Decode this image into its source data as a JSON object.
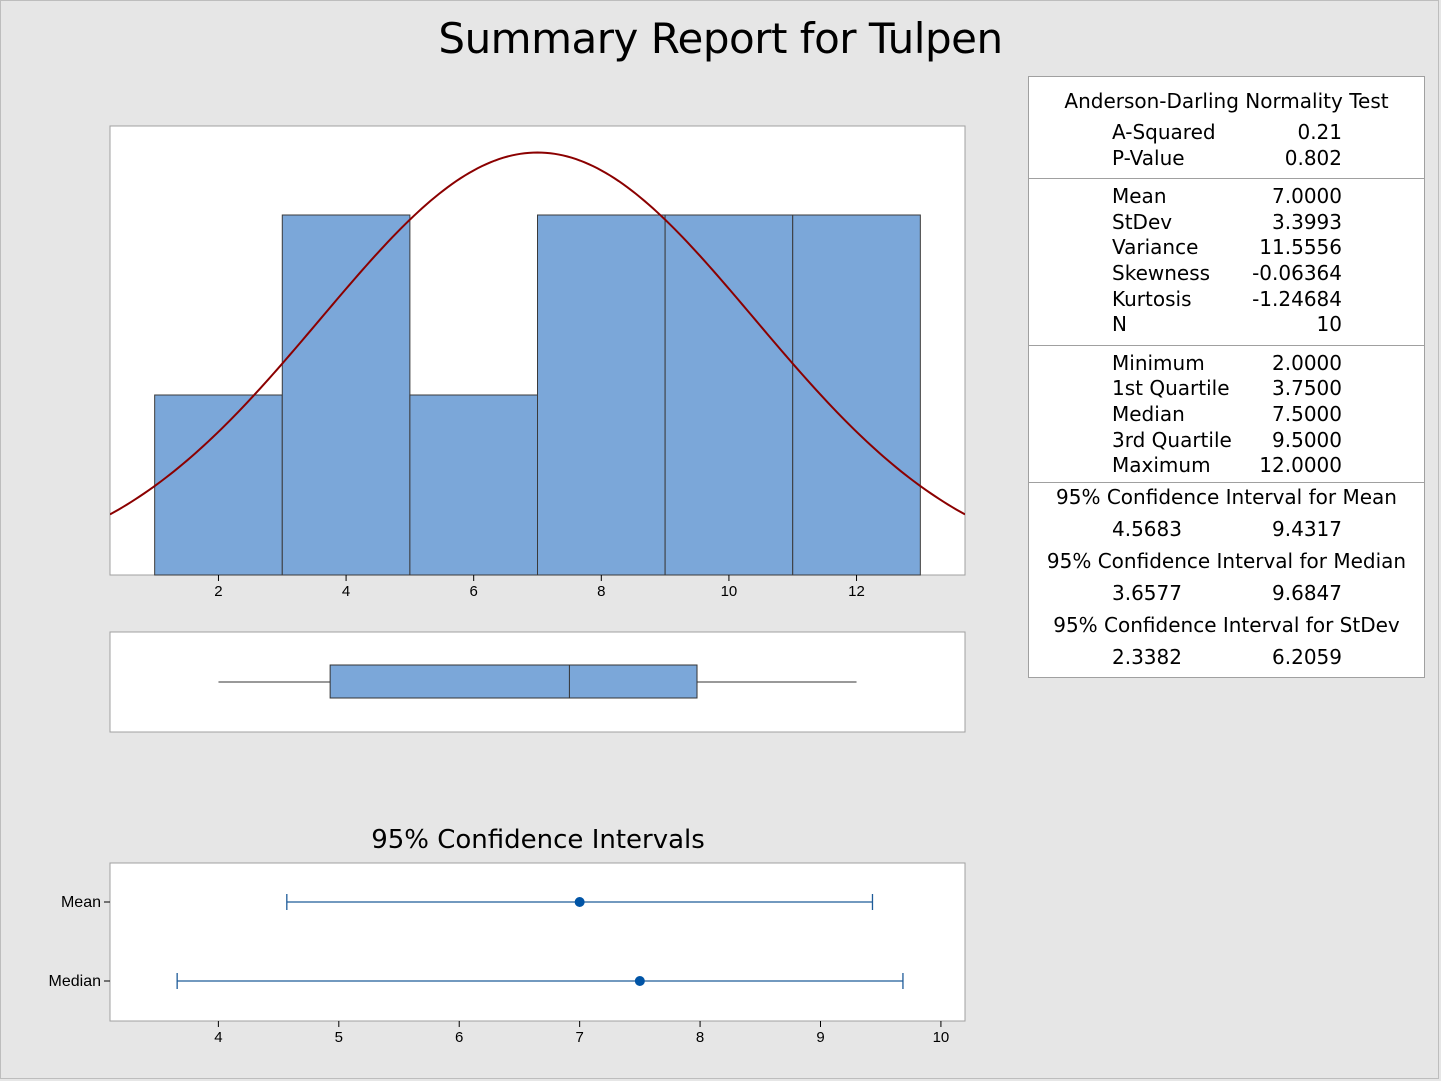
{
  "title": "Summary Report for Tulpen",
  "colors": {
    "bar_fill": "#7ba7d9",
    "bar_stroke": "#3a3a3a",
    "normal_curve": "#8b0000",
    "ci_marker": "#0054a6",
    "ci_line": "#1f5c99",
    "panel_bg": "#ffffff",
    "page_bg": "#e6e6e6"
  },
  "stats": {
    "normality": {
      "heading": "Anderson-Darling Normality Test",
      "rows": [
        {
          "label": "A-Squared",
          "value": "0.21"
        },
        {
          "label": "P-Value",
          "value": "0.802"
        }
      ]
    },
    "moments": [
      {
        "label": "Mean",
        "value": "7.0000"
      },
      {
        "label": "StDev",
        "value": "3.3993"
      },
      {
        "label": "Variance",
        "value": "11.5556"
      },
      {
        "label": "Skewness",
        "value": "-0.06364"
      },
      {
        "label": "Kurtosis",
        "value": "-1.24684"
      },
      {
        "label": "N",
        "value": "10"
      }
    ],
    "quartiles": [
      {
        "label": "Minimum",
        "value": "2.0000"
      },
      {
        "label": "1st Quartile",
        "value": "3.7500"
      },
      {
        "label": "Median",
        "value": "7.5000"
      },
      {
        "label": "3rd Quartile",
        "value": "9.5000"
      },
      {
        "label": "Maximum",
        "value": "12.0000"
      }
    ],
    "intervals": [
      {
        "heading": "95% Confidence Interval for Mean",
        "lower": "4.5683",
        "upper": "9.4317"
      },
      {
        "heading": "95% Confidence Interval for Median",
        "lower": "3.6577",
        "upper": "9.6847"
      },
      {
        "heading": "95% Confidence Interval for StDev",
        "lower": "2.3382",
        "upper": "6.2059"
      }
    ]
  },
  "chart_data": [
    {
      "type": "bar",
      "subtype": "histogram",
      "bins": [
        {
          "start": 1,
          "end": 3,
          "count": 1
        },
        {
          "start": 3,
          "end": 5,
          "count": 2
        },
        {
          "start": 5,
          "end": 7,
          "count": 1
        },
        {
          "start": 7,
          "end": 9,
          "count": 2
        },
        {
          "start": 9,
          "end": 11,
          "count": 2
        },
        {
          "start": 11,
          "end": 13,
          "count": 2
        }
      ],
      "normal_fit": {
        "mean": 7.0,
        "stdev": 3.3993
      },
      "xlim": [
        0.3,
        13.7
      ],
      "xticks": [
        2,
        4,
        6,
        8,
        10,
        12
      ],
      "y_axis_shown": false
    },
    {
      "type": "boxplot",
      "whisker_low": 2.0,
      "q1": 3.75,
      "median": 7.5,
      "q3": 9.5,
      "whisker_high": 12.0,
      "xlim": [
        0.3,
        13.7
      ]
    },
    {
      "type": "scatter",
      "subtype": "interval-plot",
      "title": "95% Confidence Intervals",
      "categories": [
        "Mean",
        "Median"
      ],
      "points": [
        {
          "name": "Mean",
          "estimate": 7.0,
          "lower": 4.5683,
          "upper": 9.4317
        },
        {
          "name": "Median",
          "estimate": 7.5,
          "lower": 3.6577,
          "upper": 9.6847
        }
      ],
      "xlim": [
        3.1,
        10.2
      ],
      "xticks": [
        4,
        5,
        6,
        7,
        8,
        9,
        10
      ]
    }
  ]
}
